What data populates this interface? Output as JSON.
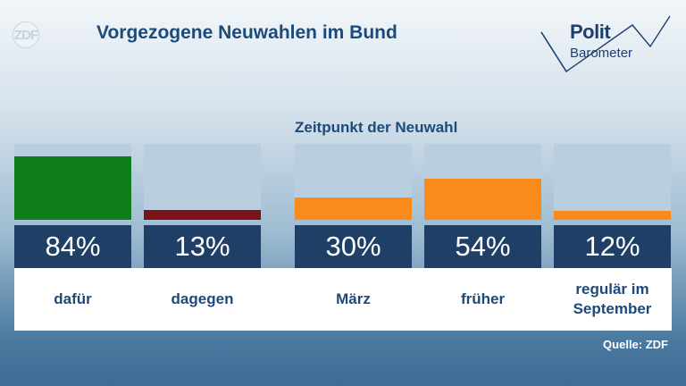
{
  "header": {
    "logo_text": "ZDF",
    "title": "Vorgezogene Neuwahlen im Bund",
    "brand_line1": "Polit",
    "brand_line2": "Barometer"
  },
  "colors": {
    "yes": "#0e7d1c",
    "no": "#7a1418",
    "timing": "#fb8a1c"
  },
  "chart_data": {
    "type": "bar",
    "title": "Vorgezogene Neuwahlen im Bund",
    "ylim": [
      0,
      100
    ],
    "groups": [
      {
        "name": "",
        "categories": [
          "dafür",
          "dagegen"
        ],
        "values": [
          84,
          13
        ],
        "value_labels": [
          "84%",
          "13%"
        ]
      },
      {
        "name": "Zeitpunkt der Neuwahl",
        "categories": [
          "März",
          "früher",
          "regulär im September"
        ],
        "values": [
          30,
          54,
          12
        ],
        "value_labels": [
          "30%",
          "54%",
          "12%"
        ]
      }
    ]
  },
  "source": "Quelle: ZDF"
}
